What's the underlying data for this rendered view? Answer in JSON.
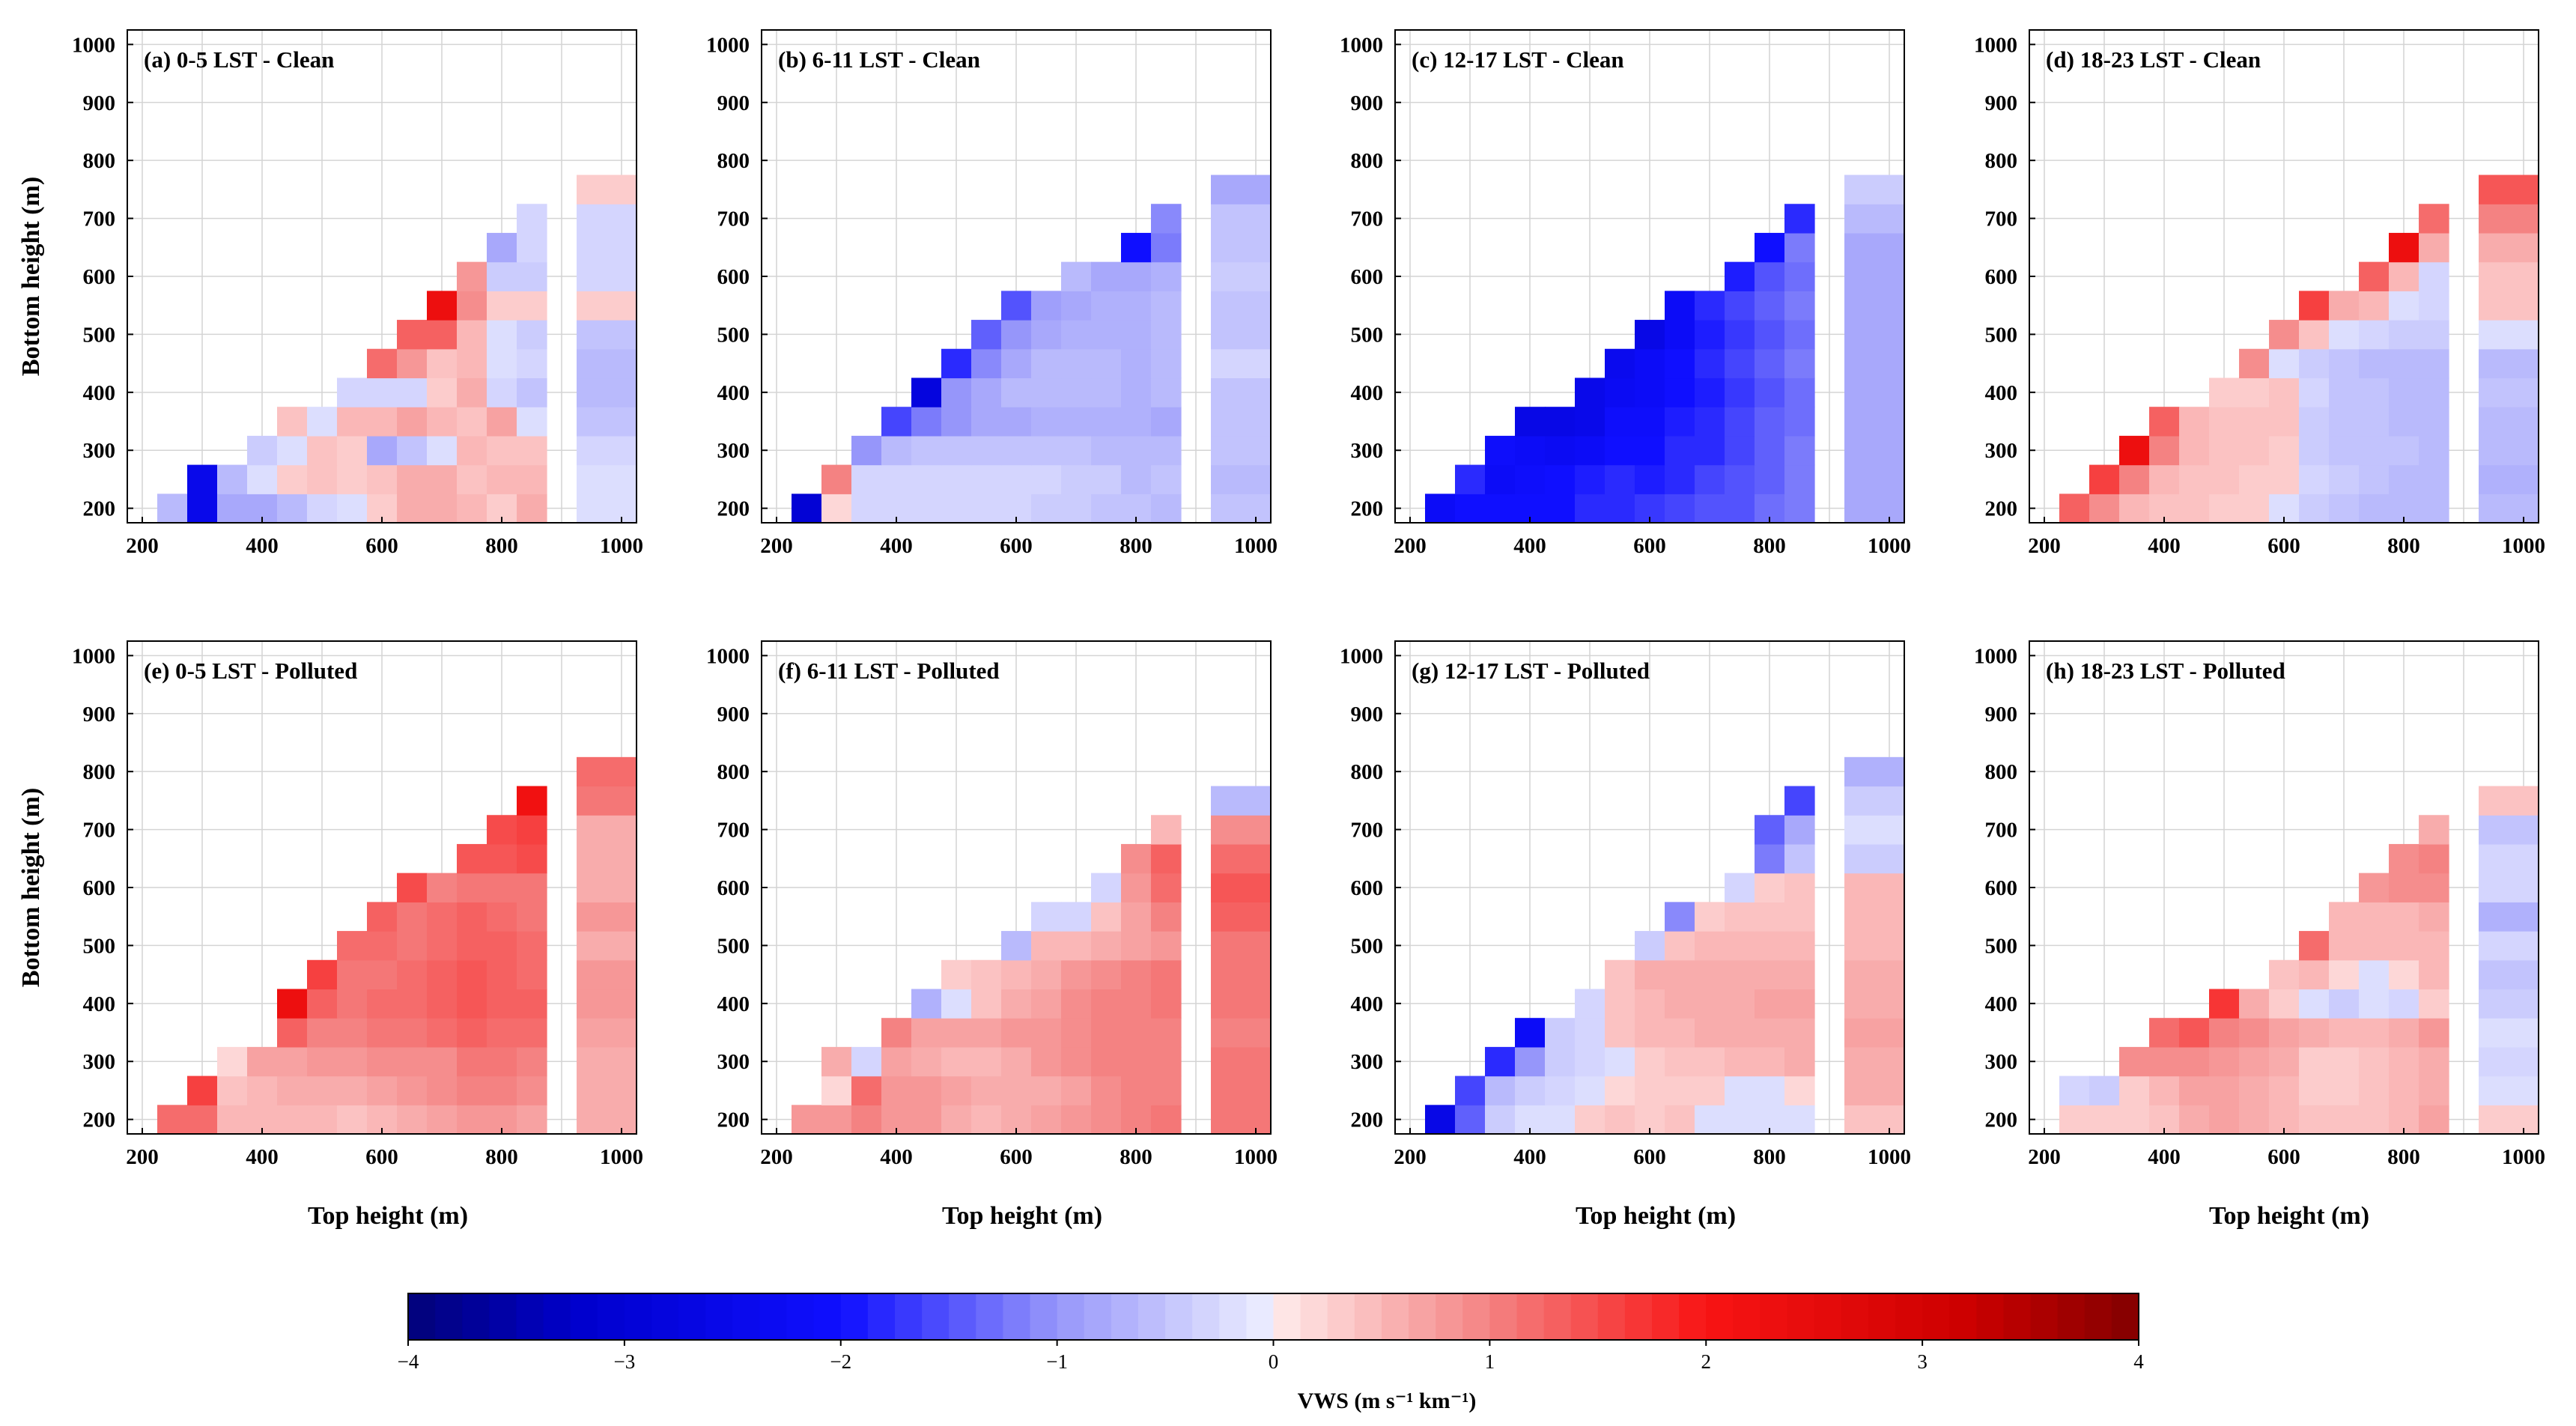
{
  "chart_data": {
    "type": "heatmap",
    "xlabel": "Top height (m)",
    "ylabel": "Bottom height (m)",
    "xlim": [
      175,
      1025
    ],
    "ylim": [
      175,
      1025
    ],
    "x_ticks": [
      "200",
      "400",
      "600",
      "800",
      "1000"
    ],
    "y_ticks": [
      "200",
      "300",
      "400",
      "500",
      "600",
      "700",
      "800",
      "900",
      "1000"
    ],
    "grid": true,
    "heights_top": [
      200,
      250,
      300,
      350,
      400,
      450,
      500,
      550,
      600,
      650,
      700,
      750,
      800,
      850,
      950
    ],
    "heights_bottom": [
      200,
      250,
      300,
      350,
      400,
      450,
      500,
      550,
      600,
      650,
      700,
      750,
      800,
      850,
      950
    ],
    "colorbar": {
      "label": "VWS (m s⁻¹ km⁻¹)",
      "range": [
        -4,
        4
      ],
      "ticks": [
        "−4",
        "−3",
        "−2",
        "−1",
        "0",
        "1",
        "2",
        "3",
        "4"
      ],
      "colormap": "blue-white-red"
    },
    "panels": [
      {
        "title": "(a) 0-5 LST - Clean",
        "rows": [
          [
            -0.6,
            -2.5,
            -0.8,
            -0.8,
            -0.6,
            -0.3,
            -0.2,
            0.3,
            0.6,
            0.6,
            0.5,
            0.3,
            0.6,
            -0.2
          ],
          [
            -2.5,
            -0.6,
            -0.2,
            0.3,
            0.4,
            0.3,
            0.4,
            0.6,
            0.6,
            0.4,
            0.5,
            0.5,
            -0.2
          ],
          [
            -0.4,
            -0.2,
            0.4,
            0.3,
            -0.8,
            -0.5,
            -0.2,
            0.5,
            0.4,
            0.4,
            -0.3
          ],
          [
            0.4,
            -0.2,
            0.5,
            0.5,
            0.7,
            0.5,
            0.4,
            0.7,
            -0.2,
            -0.5
          ],
          [
            -0.3,
            -0.3,
            -0.3,
            0.3,
            0.6,
            -0.3,
            -0.5,
            -0.6
          ],
          [
            1.2,
            0.8,
            0.4,
            0.5,
            -0.2,
            -0.3,
            -0.6
          ],
          [
            1.3,
            1.3,
            0.5,
            -0.2,
            -0.4,
            -0.5
          ],
          [
            2.3,
            0.9,
            0.3,
            0.3,
            0.3
          ],
          [
            0.8,
            -0.4,
            -0.4,
            -0.3
          ],
          [
            -0.8,
            -0.3,
            -0.3
          ],
          [
            -0.3,
            -0.3
          ],
          [
            0.3
          ]
        ]
      },
      {
        "title": "(b) 6-11 LST - Clean",
        "rows": [
          [
            -3.0,
            0.2,
            -0.3,
            -0.3,
            -0.3,
            -0.3,
            -0.3,
            -0.3,
            -0.4,
            -0.4,
            -0.5,
            -0.5,
            -0.6,
            -0.5
          ],
          [
            1.0,
            -0.3,
            -0.3,
            -0.3,
            -0.3,
            -0.3,
            -0.3,
            -0.3,
            -0.4,
            -0.4,
            -0.6,
            -0.5,
            -0.6
          ],
          [
            -1.0,
            -0.6,
            -0.5,
            -0.5,
            -0.5,
            -0.5,
            -0.5,
            -0.5,
            -0.6,
            -0.6,
            -0.6,
            -0.5
          ],
          [
            -1.6,
            -1.2,
            -1.0,
            -0.8,
            -0.8,
            -0.7,
            -0.7,
            -0.7,
            -0.7,
            -0.8,
            -0.5
          ],
          [
            -2.8,
            -1.0,
            -0.8,
            -0.6,
            -0.6,
            -0.6,
            -0.6,
            -0.7,
            -0.6,
            -0.5
          ],
          [
            -1.8,
            -1.1,
            -0.8,
            -0.6,
            -0.6,
            -0.6,
            -0.7,
            -0.6,
            -0.3
          ],
          [
            -1.4,
            -1.0,
            -0.8,
            -0.7,
            -0.7,
            -0.7,
            -0.6,
            -0.5
          ],
          [
            -1.5,
            -0.9,
            -0.8,
            -0.7,
            -0.7,
            -0.6,
            -0.5
          ],
          [
            -0.6,
            -0.8,
            -0.8,
            -0.7,
            -0.4
          ],
          [
            -2.0,
            -1.2,
            -0.5
          ],
          [
            -1.1,
            -0.5
          ],
          [
            -0.8
          ]
        ]
      },
      {
        "title": "(c) 12-17 LST - Clean",
        "rows": [
          [
            -2.2,
            -2.0,
            -2.0,
            -2.0,
            -2.0,
            -1.8,
            -1.8,
            -1.7,
            -1.6,
            -1.5,
            -1.5,
            -1.3,
            -1.2,
            -0.8
          ],
          [
            -1.8,
            -2.2,
            -2.1,
            -2.0,
            -1.9,
            -1.8,
            -1.9,
            -1.8,
            -1.6,
            -1.5,
            -1.4,
            -1.2,
            -0.8
          ],
          [
            -2.1,
            -2.2,
            -2.3,
            -2.2,
            -2.0,
            -2.0,
            -1.8,
            -1.8,
            -1.6,
            -1.4,
            -1.2,
            -0.8
          ],
          [
            -2.6,
            -2.6,
            -2.5,
            -2.1,
            -2.1,
            -1.9,
            -1.8,
            -1.6,
            -1.4,
            -1.3,
            -0.8
          ],
          [
            -2.5,
            -2.3,
            -2.2,
            -2.0,
            -1.9,
            -1.7,
            -1.5,
            -1.3,
            -0.8
          ],
          [
            -2.4,
            -2.2,
            -2.0,
            -1.8,
            -1.6,
            -1.4,
            -1.2,
            -0.8
          ],
          [
            -2.6,
            -2.2,
            -1.9,
            -1.7,
            -1.5,
            -1.3,
            -0.8
          ],
          [
            -2.2,
            -1.8,
            -1.6,
            -1.4,
            -1.2,
            -0.8
          ],
          [
            -1.9,
            -1.5,
            -1.3,
            -0.8
          ],
          [
            -2.0,
            -1.2,
            -0.8
          ],
          [
            -1.8,
            -0.6
          ],
          [
            -0.4
          ]
        ]
      },
      {
        "title": "(d) 18-23 LST - Clean",
        "rows": [
          [
            1.3,
            0.9,
            0.5,
            0.4,
            0.4,
            0.3,
            0.3,
            -0.2,
            -0.4,
            -0.5,
            -0.6,
            -0.6,
            -0.6,
            -0.6
          ],
          [
            1.6,
            1.0,
            0.5,
            0.4,
            0.4,
            0.3,
            0.3,
            -0.3,
            -0.4,
            -0.5,
            -0.6,
            -0.6,
            -0.7
          ],
          [
            2.3,
            1.0,
            0.5,
            0.4,
            0.4,
            0.3,
            -0.4,
            -0.5,
            -0.5,
            -0.5,
            -0.6,
            -0.6
          ],
          [
            1.3,
            0.5,
            0.4,
            0.4,
            0.4,
            -0.4,
            -0.5,
            -0.5,
            -0.6,
            -0.6,
            -0.6
          ],
          [
            0.3,
            0.3,
            0.4,
            -0.3,
            -0.5,
            -0.5,
            -0.6,
            -0.6,
            -0.5
          ],
          [
            0.9,
            -0.2,
            -0.4,
            -0.5,
            -0.6,
            -0.6,
            -0.6,
            -0.6
          ],
          [
            0.9,
            0.4,
            -0.2,
            -0.3,
            -0.4,
            -0.4,
            -0.2
          ],
          [
            1.6,
            0.6,
            0.5,
            -0.2,
            -0.3,
            0.4
          ],
          [
            1.3,
            0.5,
            -0.3,
            0.4
          ],
          [
            2.3,
            0.6,
            0.6
          ],
          [
            1.2,
            1.0
          ],
          [
            1.4
          ]
        ]
      },
      {
        "title": "(e) 0-5 LST - Polluted",
        "rows": [
          [
            1.2,
            1.2,
            0.5,
            0.5,
            0.5,
            0.5,
            0.4,
            0.5,
            0.6,
            0.7,
            0.8,
            0.8,
            0.7,
            0.6
          ],
          [
            1.6,
            0.4,
            0.5,
            0.6,
            0.6,
            0.6,
            0.7,
            0.8,
            0.9,
            1.0,
            1.0,
            0.9,
            0.6
          ],
          [
            0.2,
            0.7,
            0.7,
            0.8,
            0.8,
            0.9,
            0.9,
            0.9,
            1.1,
            1.1,
            1.0,
            0.6
          ],
          [
            1.3,
            1.0,
            1.0,
            1.1,
            1.1,
            1.2,
            1.3,
            1.2,
            1.2,
            0.7
          ],
          [
            2.3,
            1.3,
            1.1,
            1.2,
            1.2,
            1.3,
            1.4,
            1.3,
            1.3,
            0.8
          ],
          [
            1.6,
            1.1,
            1.1,
            1.2,
            1.3,
            1.4,
            1.3,
            1.2,
            0.8
          ],
          [
            1.2,
            1.2,
            1.1,
            1.2,
            1.3,
            1.3,
            1.2,
            0.6
          ],
          [
            1.3,
            1.1,
            1.2,
            1.3,
            1.2,
            1.1,
            0.8
          ],
          [
            1.5,
            1.0,
            1.1,
            1.1,
            1.1,
            0.6
          ],
          [
            1.4,
            1.4,
            1.5,
            0.6
          ],
          [
            1.5,
            1.6,
            0.6
          ],
          [
            2.2,
            1.1
          ],
          [
            1.2
          ]
        ]
      },
      {
        "title": "(f) 6-11 LST - Polluted",
        "rows": [
          [
            0.8,
            0.8,
            1.0,
            0.8,
            0.8,
            0.6,
            0.5,
            0.6,
            0.7,
            0.8,
            0.9,
            1.0,
            1.1,
            1.1
          ],
          [
            0.2,
            1.2,
            0.8,
            0.8,
            0.7,
            0.6,
            0.6,
            0.6,
            0.7,
            0.9,
            1.0,
            1.0,
            1.1
          ],
          [
            0.6,
            -0.3,
            0.7,
            0.6,
            0.5,
            0.5,
            0.6,
            0.8,
            0.9,
            1.0,
            1.0,
            1.0,
            1.1
          ],
          [
            1.0,
            0.7,
            0.7,
            0.7,
            0.8,
            0.8,
            0.9,
            1.0,
            1.0,
            1.0,
            1.0
          ],
          [
            -0.7,
            -0.2,
            0.4,
            0.6,
            0.7,
            0.9,
            1.0,
            1.0,
            1.1,
            1.1
          ],
          [
            0.3,
            0.4,
            0.5,
            0.6,
            0.8,
            0.9,
            1.0,
            1.1,
            1.1
          ],
          [
            -0.6,
            0.5,
            0.5,
            0.6,
            0.7,
            0.8,
            1.1
          ],
          [
            -0.3,
            -0.3,
            0.4,
            0.7,
            1.0,
            1.3
          ],
          [
            -0.3,
            0.8,
            1.2,
            1.4
          ],
          [
            0.9,
            1.3,
            1.2
          ],
          [
            0.5,
            0.9
          ],
          [
            -0.6
          ]
        ]
      },
      {
        "title": "(g) 12-17 LST - Polluted",
        "rows": [
          [
            -2.6,
            -1.4,
            -0.4,
            -0.2,
            -0.2,
            0.3,
            0.4,
            0.3,
            0.4,
            -0.2,
            -0.2,
            -0.2,
            -0.2,
            0.4
          ],
          [
            -1.6,
            -0.6,
            -0.4,
            -0.3,
            -0.2,
            0.2,
            0.3,
            0.3,
            0.3,
            -0.2,
            -0.2,
            0.2,
            0.6
          ],
          [
            -1.8,
            -1.0,
            -0.4,
            -0.3,
            -0.2,
            0.3,
            0.4,
            0.4,
            0.5,
            0.5,
            0.6,
            0.6
          ],
          [
            -2.2,
            -0.4,
            -0.3,
            0.4,
            0.5,
            0.5,
            0.6,
            0.6,
            0.6,
            0.6,
            0.7
          ],
          [
            -0.3,
            0.4,
            0.5,
            0.6,
            0.6,
            0.6,
            0.7,
            0.7,
            0.6
          ],
          [
            0.4,
            0.6,
            0.6,
            0.6,
            0.6,
            0.6,
            0.6,
            0.6
          ],
          [
            -0.4,
            0.4,
            0.5,
            0.5,
            0.5,
            0.5,
            0.5
          ],
          [
            -1.1,
            0.3,
            0.4,
            0.4,
            0.4,
            0.5
          ],
          [
            -0.3,
            0.3,
            0.4,
            0.5
          ],
          [
            -1.2,
            -0.5,
            -0.4
          ],
          [
            -1.4,
            -0.8,
            -0.2
          ],
          [
            -1.6,
            -0.4
          ],
          [
            -0.7
          ]
        ]
      },
      {
        "title": "(h) 18-23 LST - Polluted",
        "rows": [
          [
            0.3,
            0.3,
            0.3,
            0.4,
            0.6,
            0.7,
            0.6,
            0.5,
            0.4,
            0.4,
            0.4,
            0.5,
            0.7,
            0.3
          ],
          [
            -0.3,
            -0.4,
            0.3,
            0.5,
            0.7,
            0.7,
            0.6,
            0.5,
            0.3,
            0.3,
            0.4,
            0.5,
            0.6,
            -0.2
          ],
          [
            0.9,
            0.9,
            0.9,
            0.8,
            0.7,
            0.6,
            0.3,
            0.3,
            0.4,
            0.5,
            0.6,
            -0.3
          ],
          [
            1.2,
            1.4,
            1.0,
            0.9,
            0.7,
            0.6,
            0.5,
            0.5,
            0.6,
            0.8,
            -0.2
          ],
          [
            1.7,
            0.6,
            0.3,
            -0.2,
            -0.4,
            -0.2,
            -0.3,
            0.3,
            -0.4
          ],
          [
            0.4,
            0.5,
            0.2,
            -0.2,
            0.2,
            0.5,
            -0.5
          ],
          [
            1.2,
            0.5,
            0.5,
            0.5,
            0.5,
            -0.3
          ],
          [
            0.5,
            0.5,
            0.5,
            0.6,
            -0.7
          ],
          [
            0.8,
            0.9,
            0.9,
            -0.3
          ],
          [
            0.9,
            1.0,
            -0.3
          ],
          [
            0.6,
            -0.5
          ],
          [
            0.4
          ]
        ]
      }
    ]
  }
}
